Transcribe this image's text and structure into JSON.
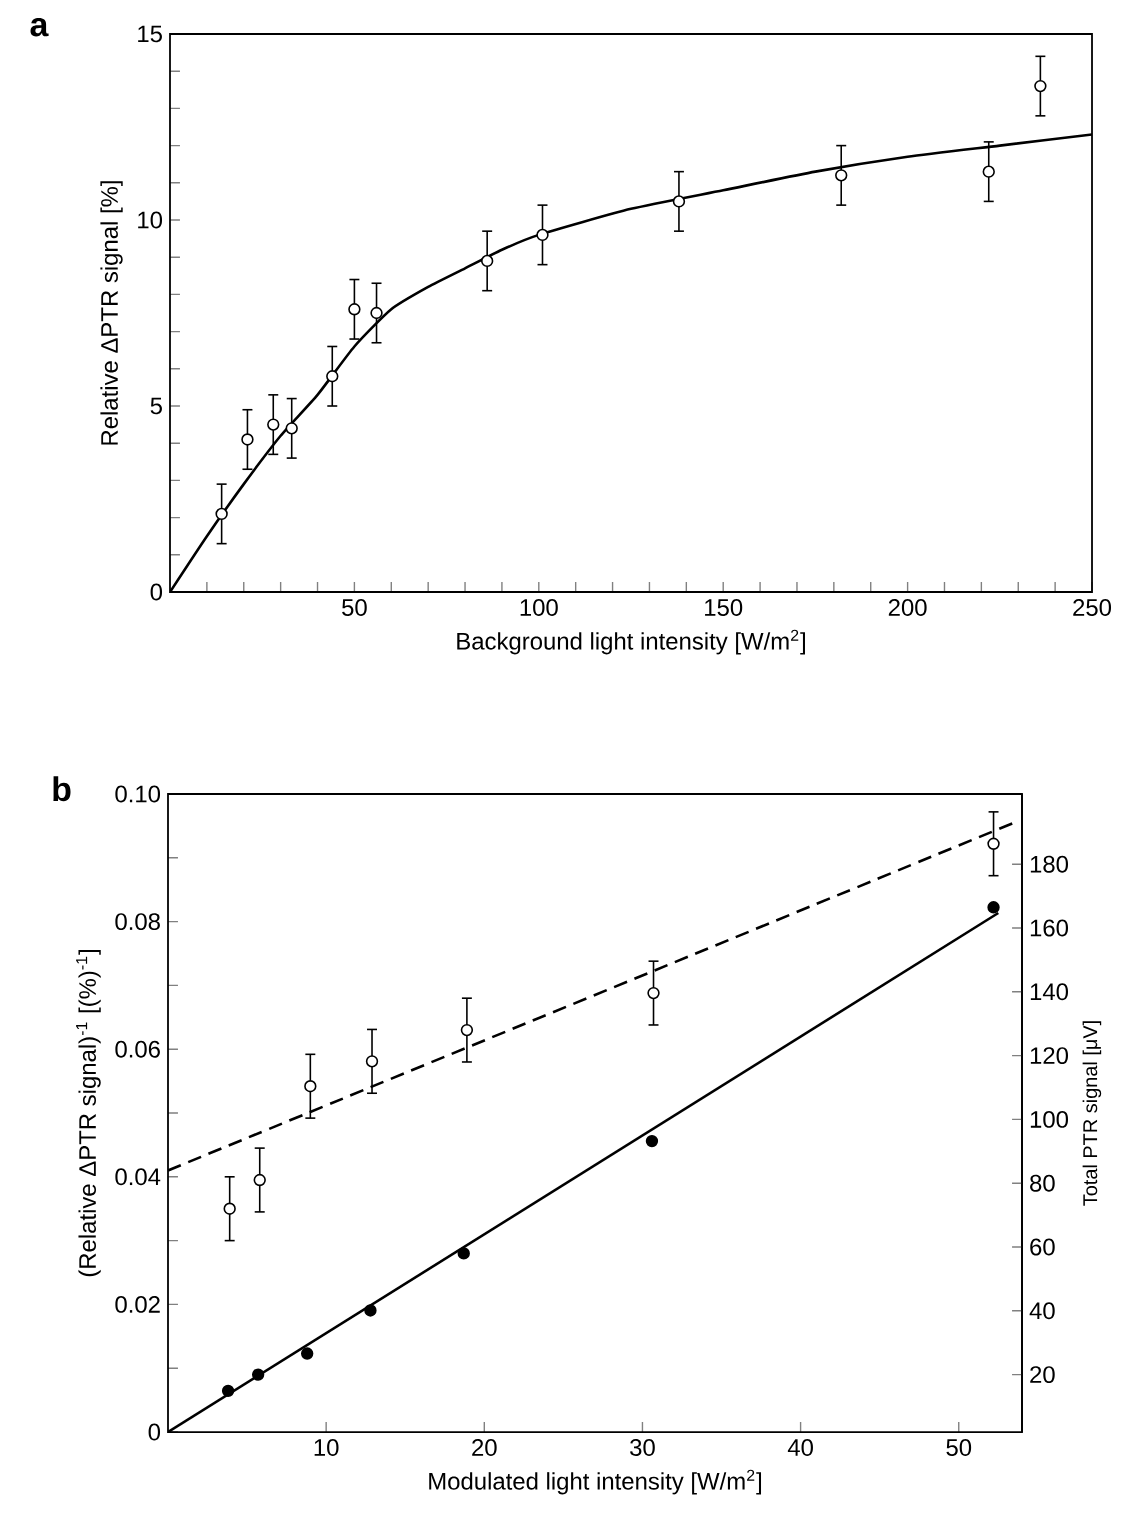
{
  "chart_data": [
    {
      "type": "scatter",
      "title": "a",
      "xlabel": "Background light intensity [W/m$^{2}$]",
      "ylabel": "Relative ΔPTR signal [%]",
      "xlim": [
        0,
        250
      ],
      "ylim": [
        0,
        15
      ],
      "xticks": [
        {
          "value": 10,
          "label": null
        },
        {
          "value": 20,
          "label": null
        },
        {
          "value": 30,
          "label": null
        },
        {
          "value": 40,
          "label": null
        },
        50,
        {
          "value": 60,
          "label": null
        },
        {
          "value": 70,
          "label": null
        },
        {
          "value": 80,
          "label": null
        },
        {
          "value": 90,
          "label": null
        },
        100,
        {
          "value": 110,
          "label": null
        },
        {
          "value": 120,
          "label": null
        },
        {
          "value": 130,
          "label": null
        },
        {
          "value": 140,
          "label": null
        },
        150,
        {
          "value": 160,
          "label": null
        },
        {
          "value": 170,
          "label": null
        },
        {
          "value": 180,
          "label": null
        },
        {
          "value": 190,
          "label": null
        },
        200,
        {
          "value": 210,
          "label": null
        },
        {
          "value": 220,
          "label": null
        },
        {
          "value": 230,
          "label": null
        },
        {
          "value": 240,
          "label": null
        },
        250
      ],
      "yticks": [
        0,
        {
          "value": 1,
          "label": null
        },
        {
          "value": 2,
          "label": null
        },
        {
          "value": 3,
          "label": null
        },
        {
          "value": 4,
          "label": null
        },
        5,
        {
          "value": 6,
          "label": null
        },
        {
          "value": 7,
          "label": null
        },
        {
          "value": 8,
          "label": null
        },
        {
          "value": 9,
          "label": null
        },
        10,
        {
          "value": 11,
          "label": null
        },
        {
          "value": 12,
          "label": null
        },
        {
          "value": 13,
          "label": null
        },
        {
          "value": 14,
          "label": null
        },
        15
      ],
      "series": [
        {
          "marker": "circle",
          "color": "#000000",
          "x": [
            14,
            21,
            28,
            33,
            44,
            50,
            56,
            86,
            101,
            138,
            182,
            222,
            236
          ],
          "values": [
            2.1,
            4.1,
            4.5,
            4.4,
            5.8,
            7.6,
            7.5,
            8.9,
            9.6,
            10.5,
            11.2,
            11.3,
            13.6
          ],
          "errors": [
            0.8,
            0.8,
            0.8,
            0.8,
            0.8,
            0.8,
            0.8,
            0.8,
            0.8,
            0.8,
            0.8,
            0.8,
            0.8
          ]
        },
        {
          "type": "line",
          "marker": "none",
          "line_style": "solid",
          "color": "#000000",
          "x": [
            0,
            10,
            20,
            30,
            40,
            50,
            60,
            70,
            80,
            90,
            100,
            125,
            150,
            175,
            200,
            225,
            250
          ],
          "values": [
            0,
            1.5,
            2.9,
            4.2,
            5.3,
            6.6,
            7.6,
            8.2,
            8.7,
            9.2,
            9.6,
            10.3,
            10.8,
            11.3,
            11.7,
            12.0,
            12.3
          ]
        }
      ]
    },
    {
      "type": "scatter",
      "title": "b",
      "xlabel": "Modulated light intensity [W/m$^{2}$]",
      "ylabel": "(Relative ΔPTR signal)$^{-1}$ [(%)$^{-1}$]",
      "y2label": "Total PTR signal [μV]",
      "xlim": [
        0,
        54
      ],
      "ylim": [
        0,
        0.1
      ],
      "y2lim": [
        2,
        202
      ],
      "xticks": [
        10,
        20,
        30,
        40,
        50
      ],
      "yticks": [
        0,
        {
          "value": 0.01,
          "label": null
        },
        0.02,
        {
          "value": 0.03,
          "label": null
        },
        0.04,
        {
          "value": 0.05,
          "label": null
        },
        0.06,
        {
          "value": 0.07,
          "label": null
        },
        0.08,
        {
          "value": 0.09,
          "label": null
        },
        {
          "value": 0.1,
          "label": "0.10"
        }
      ],
      "y2ticks": [
        20,
        40,
        60,
        80,
        100,
        120,
        140,
        160,
        180
      ],
      "series": [
        {
          "marker": "circle",
          "color": "#000000",
          "x": [
            3.9,
            5.8,
            9.0,
            12.9,
            18.9,
            30.7,
            52.2
          ],
          "values": [
            0.035,
            0.0395,
            0.0542,
            0.0581,
            0.063,
            0.0688,
            0.0922
          ],
          "errors": [
            0.005,
            0.005,
            0.005,
            0.005,
            0.005,
            0.005,
            0.005
          ]
        },
        {
          "type": "line",
          "marker": "none",
          "line_style": "dashed",
          "color": "#000000",
          "x": [
            0,
            53.4
          ],
          "values": [
            0.041,
            0.0954
          ]
        },
        {
          "axis": "y2",
          "marker": "circle",
          "color": "#000000",
          "x": [
            3.8,
            5.7,
            8.8,
            12.8,
            18.7,
            30.6,
            52.2
          ],
          "values": [
            14.9,
            20.0,
            26.6,
            40.1,
            58.0,
            93.2,
            166.5
          ]
        },
        {
          "type": "line",
          "axis": "y2",
          "marker": "none",
          "line_style": "solid",
          "color": "#000000",
          "x": [
            0,
            52.5
          ],
          "values": [
            2,
            164.7
          ]
        }
      ]
    }
  ]
}
